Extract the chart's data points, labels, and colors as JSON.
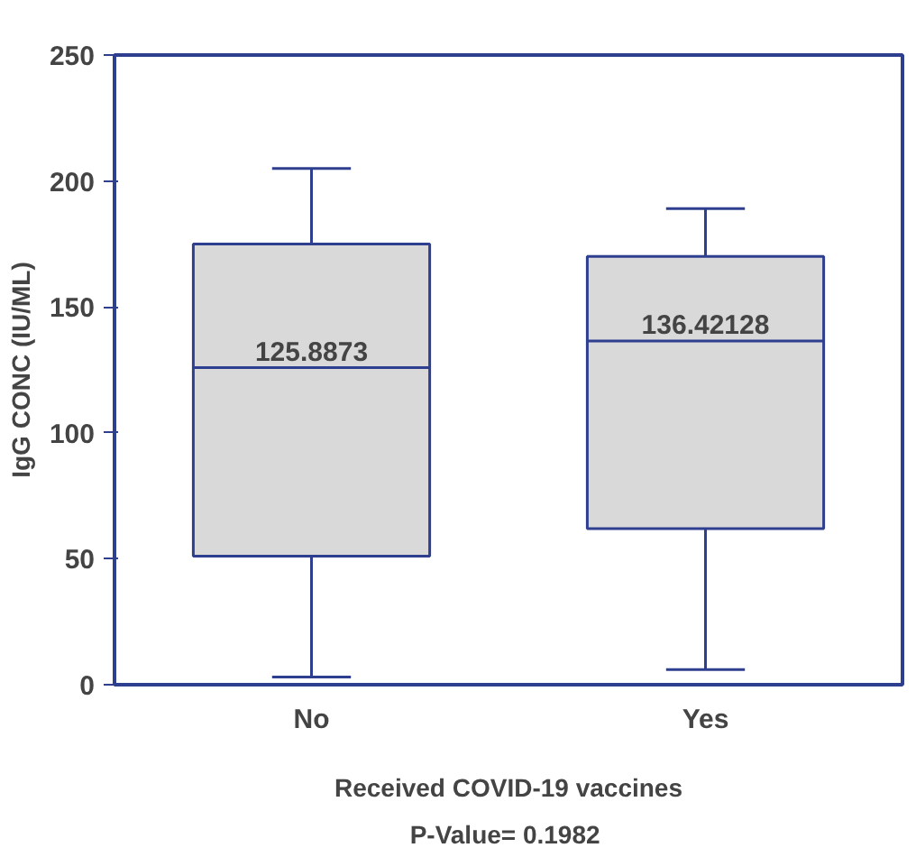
{
  "chart_data": {
    "type": "box",
    "xlabel": "Received COVID-19 vaccines",
    "ylabel": "IgG CONC (IU/ML)",
    "categories": [
      "No",
      "Yes"
    ],
    "color": "#d9d9d9",
    "boxes": [
      {
        "low": 3,
        "q1": 51,
        "median": 125.8873,
        "q3": 175,
        "high": 205
      },
      {
        "low": 6,
        "q1": 62,
        "median": 136.42128,
        "q3": 170,
        "high": 189
      }
    ],
    "ylim": [
      0,
      250
    ],
    "yticks": [
      0,
      50,
      100,
      150,
      200,
      250
    ],
    "grid": false,
    "annotations": [
      {
        "text": "125.8873",
        "x": "No",
        "y": 125.8873
      },
      {
        "text": "136.42128",
        "x": "Yes",
        "y": 136.42128
      },
      "P-Value=  0.1982"
    ]
  }
}
